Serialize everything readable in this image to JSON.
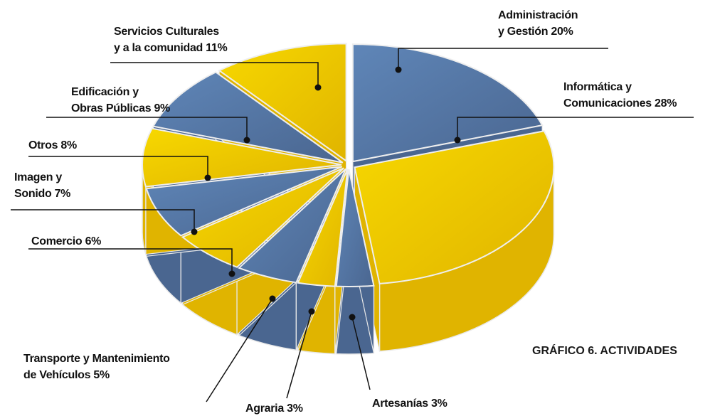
{
  "chart_data": {
    "type": "pie",
    "title": "GRÁFICO 6. ACTIVIDADES",
    "categories": [
      "Administración\ny Gestión",
      "Informática y\nComunicaciones",
      "Artesanías",
      "Agraria",
      "Transporte y Mantenimiento\nde Vehículos",
      "Comercio",
      "Imagen y\nSonido",
      "Otros",
      "Edificación y\nObras Públicas",
      "Servicios Culturales\ny a la comunidad"
    ],
    "values": [
      20,
      28,
      3,
      3,
      5,
      6,
      7,
      8,
      9,
      11
    ],
    "value_labels": [
      "20%",
      "28%",
      "3%",
      "3%",
      "5%",
      "6%",
      "7%",
      "8%",
      "9%",
      "11%"
    ],
    "colors": [
      "#5f86b8",
      "#f7d800",
      "#5f86b8",
      "#f7d800",
      "#5f86b8",
      "#f7d800",
      "#5f86b8",
      "#f7d800",
      "#5f86b8",
      "#f7d800"
    ]
  }
}
